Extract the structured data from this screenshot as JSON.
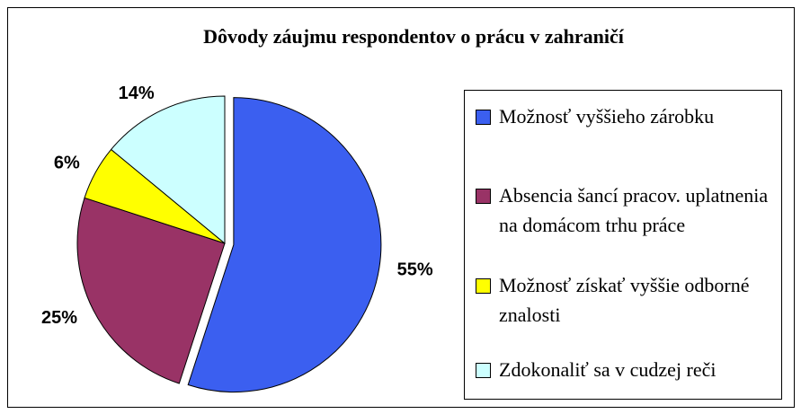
{
  "chart_data": {
    "type": "pie",
    "title": "Dôvody záujmu respondentov o prácu v zahraničí",
    "categories": [
      "Možnosť vyššieho zárobku",
      "Absencia šancí pracov. uplatnenia na domácom trhu práce",
      "Možnosť získať vyššie odborné znalosti",
      "Zdokonaliť sa v cudzej reči"
    ],
    "values": [
      55,
      25,
      6,
      14
    ],
    "value_labels": [
      "55%",
      "25%",
      "6%",
      "14%"
    ],
    "colors": [
      "#3b5ff0",
      "#993366",
      "#ffff00",
      "#ccffff"
    ],
    "legend": "right"
  }
}
